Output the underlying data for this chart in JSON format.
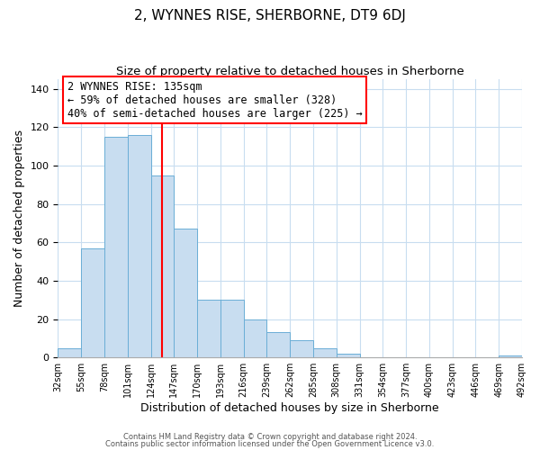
{
  "title": "2, WYNNES RISE, SHERBORNE, DT9 6DJ",
  "subtitle": "Size of property relative to detached houses in Sherborne",
  "xlabel": "Distribution of detached houses by size in Sherborne",
  "ylabel": "Number of detached properties",
  "bar_values": [
    5,
    57,
    115,
    116,
    95,
    67,
    30,
    30,
    20,
    13,
    9,
    5,
    2,
    0,
    0,
    0,
    0,
    0,
    0,
    1
  ],
  "all_tick_labels": [
    "32sqm",
    "55sqm",
    "78sqm",
    "101sqm",
    "124sqm",
    "147sqm",
    "170sqm",
    "193sqm",
    "216sqm",
    "239sqm",
    "262sqm",
    "285sqm",
    "308sqm",
    "331sqm",
    "354sqm",
    "377sqm",
    "400sqm",
    "423sqm",
    "446sqm",
    "469sqm",
    "492sqm"
  ],
  "bar_color": "#c8ddf0",
  "bar_edge_color": "#6baed6",
  "ylim": [
    0,
    145
  ],
  "annotation_line1": "2 WYNNES RISE: 135sqm",
  "annotation_line2": "← 59% of detached houses are smaller (328)",
  "annotation_line3": "40% of semi-detached houses are larger (225) →",
  "footer1": "Contains HM Land Registry data © Crown copyright and database right 2024.",
  "footer2": "Contains public sector information licensed under the Open Government Licence v3.0.",
  "title_fontsize": 11,
  "subtitle_fontsize": 9.5,
  "ylabel_fontsize": 9,
  "xlabel_fontsize": 9,
  "annotation_fontsize": 8.5,
  "tick_fontsize": 7,
  "ytick_fontsize": 8
}
